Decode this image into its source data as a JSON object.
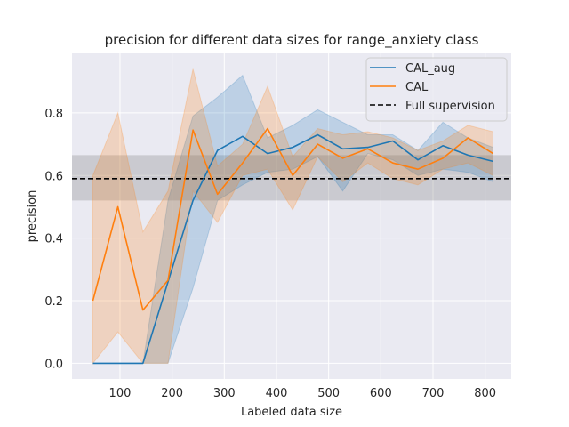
{
  "chart_data": {
    "type": "line",
    "title": "precision for different data sizes for range_anxiety class",
    "xlabel": "Labeled data size",
    "ylabel": "precision",
    "xlim": [
      8,
      850
    ],
    "ylim": [
      -0.05,
      0.99
    ],
    "xticks": [
      100,
      200,
      300,
      400,
      500,
      600,
      700,
      800
    ],
    "yticks": [
      0.0,
      0.2,
      0.4,
      0.6,
      0.8
    ],
    "ytick_labels": [
      "0.0",
      "0.2",
      "0.4",
      "0.6",
      "0.8"
    ],
    "grid": true,
    "background": "#eaeaf2",
    "legend_position": "top-right",
    "x": [
      48,
      96,
      144,
      192,
      240,
      287,
      335,
      383,
      431,
      479,
      527,
      575,
      623,
      671,
      719,
      767,
      815
    ],
    "series": [
      {
        "name": "CAL_aug",
        "color": "#1f77b4",
        "values": [
          0.0,
          0.0,
          0.0,
          0.26,
          0.52,
          0.68,
          0.725,
          0.67,
          0.69,
          0.73,
          0.685,
          0.69,
          0.71,
          0.65,
          0.695,
          0.665,
          0.645
        ],
        "lower": [
          0.0,
          0.0,
          0.0,
          0.0,
          0.24,
          0.52,
          0.57,
          0.61,
          0.62,
          0.66,
          0.55,
          0.67,
          0.65,
          0.6,
          0.62,
          0.61,
          0.58
        ],
        "upper": [
          0.0,
          0.0,
          0.0,
          0.52,
          0.79,
          0.85,
          0.92,
          0.72,
          0.76,
          0.81,
          0.77,
          0.73,
          0.73,
          0.68,
          0.77,
          0.72,
          0.69
        ]
      },
      {
        "name": "CAL",
        "color": "#ff7f0e",
        "values": [
          0.2,
          0.5,
          0.17,
          0.265,
          0.745,
          0.54,
          0.64,
          0.75,
          0.6,
          0.7,
          0.655,
          0.685,
          0.64,
          0.62,
          0.655,
          0.72,
          0.67
        ],
        "lower": [
          0.0,
          0.1,
          0.0,
          0.0,
          0.55,
          0.45,
          0.6,
          0.62,
          0.49,
          0.66,
          0.58,
          0.64,
          0.59,
          0.57,
          0.62,
          0.64,
          0.6
        ],
        "upper": [
          0.6,
          0.8,
          0.42,
          0.55,
          0.94,
          0.63,
          0.7,
          0.885,
          0.66,
          0.75,
          0.73,
          0.74,
          0.72,
          0.68,
          0.71,
          0.76,
          0.74
        ]
      }
    ],
    "reference": {
      "name": "Full supervision",
      "color": "#000000",
      "value": 0.59,
      "band": [
        0.52,
        0.665
      ]
    }
  }
}
